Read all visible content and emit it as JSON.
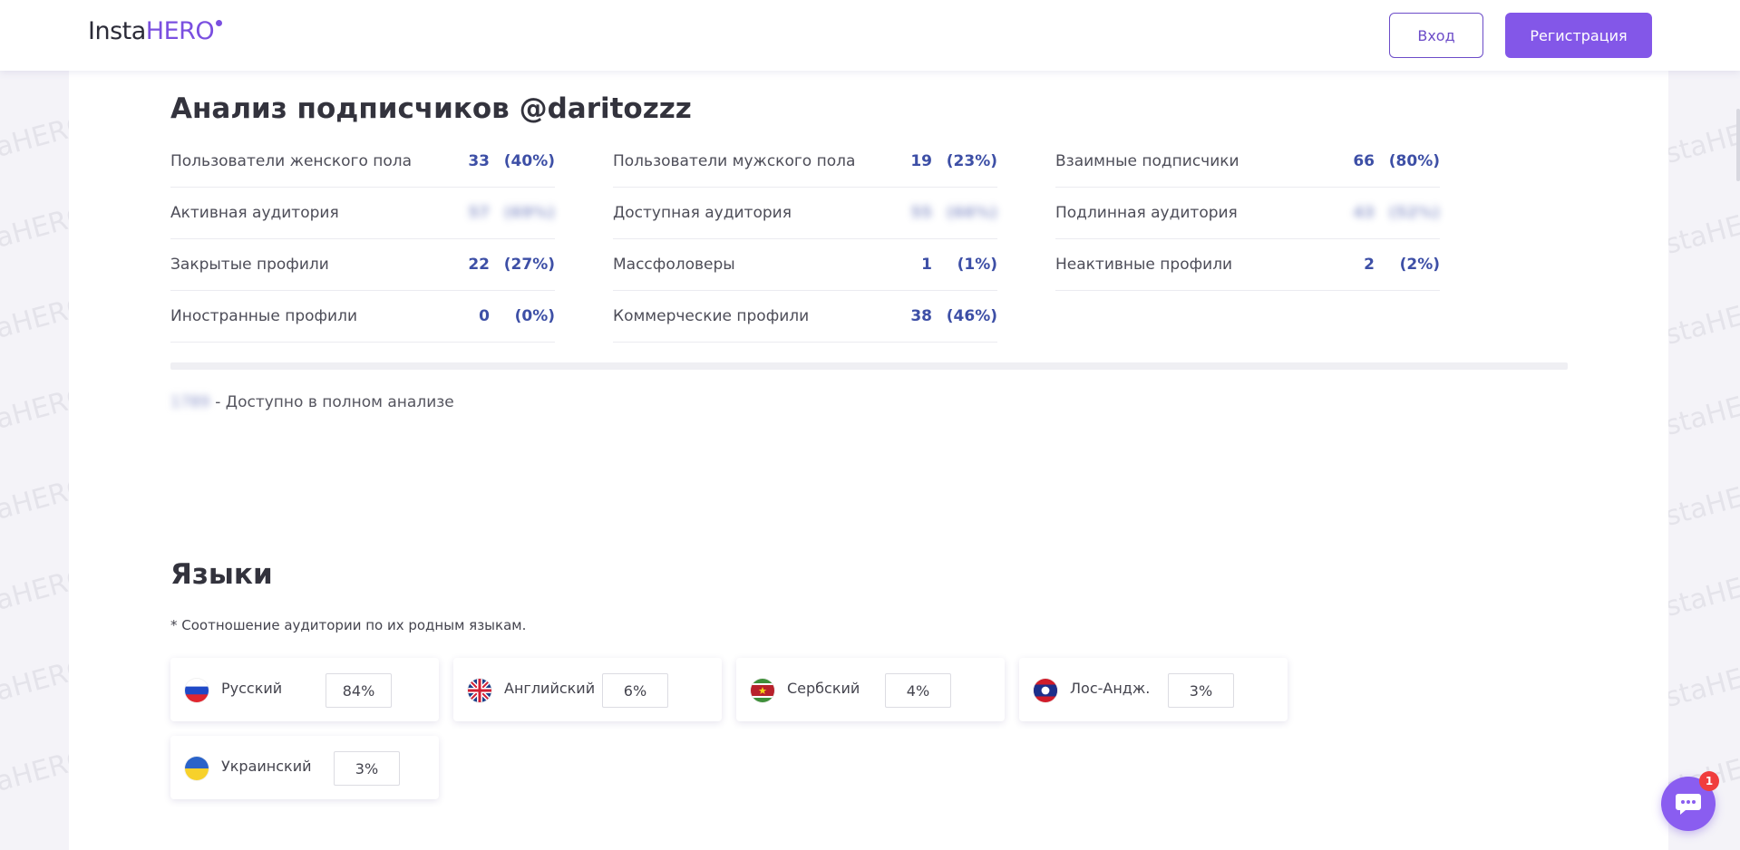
{
  "header": {
    "logo_insta": "Insta",
    "logo_hero": "HERO",
    "login_label": "Вход",
    "register_label": "Регистрация"
  },
  "watermark_text": "InstaHERO",
  "analysis": {
    "title": "Анализ подписчиков @daritozzz",
    "columns": [
      [
        {
          "label": "Пользователи женского пола",
          "count": "33",
          "pct": "(40%)",
          "blurred": false
        },
        {
          "label": "Активная аудитория",
          "count": "57",
          "pct": "(69%)",
          "blurred": true
        },
        {
          "label": "Закрытые профили",
          "count": "22",
          "pct": "(27%)",
          "blurred": false
        },
        {
          "label": "Иностранные профили",
          "count": "0",
          "pct": "(0%)",
          "blurred": false
        }
      ],
      [
        {
          "label": "Пользователи мужского пола",
          "count": "19",
          "pct": "(23%)",
          "blurred": false
        },
        {
          "label": "Доступная аудитория",
          "count": "55",
          "pct": "(66%)",
          "blurred": true
        },
        {
          "label": "Массфоловеры",
          "count": "1",
          "pct": "(1%)",
          "blurred": false
        },
        {
          "label": "Коммерческие профили",
          "count": "38",
          "pct": "(46%)",
          "blurred": false
        }
      ],
      [
        {
          "label": "Взаимные подписчики",
          "count": "66",
          "pct": "(80%)",
          "blurred": false
        },
        {
          "label": "Подлинная аудитория",
          "count": "43",
          "pct": "(52%)",
          "blurred": true
        },
        {
          "label": "Неактивные профили",
          "count": "2",
          "pct": "(2%)",
          "blurred": false
        }
      ]
    ],
    "full_note_count": "1789",
    "full_note_text": "- Доступно в полном анализе"
  },
  "languages": {
    "title": "Языки",
    "subtitle": "* Соотношение аудитории по их родным языкам.",
    "items": [
      {
        "name": "Русский",
        "pct": "84%",
        "flag": "russia-flag-icon"
      },
      {
        "name": "Английский",
        "pct": "6%",
        "flag": "uk-flag-icon"
      },
      {
        "name": "Сербский",
        "pct": "4%",
        "flag": "suriname-flag-icon"
      },
      {
        "name": "Лос-Андж.",
        "pct": "3%",
        "flag": "laos-flag-icon"
      },
      {
        "name": "Украинский",
        "pct": "3%",
        "flag": "ukraine-flag-icon"
      }
    ]
  },
  "chat": {
    "badge": "1",
    "icon": "chat-icon"
  },
  "colors": {
    "accent": "#8357e8",
    "stat_value": "#3d4fa6"
  }
}
